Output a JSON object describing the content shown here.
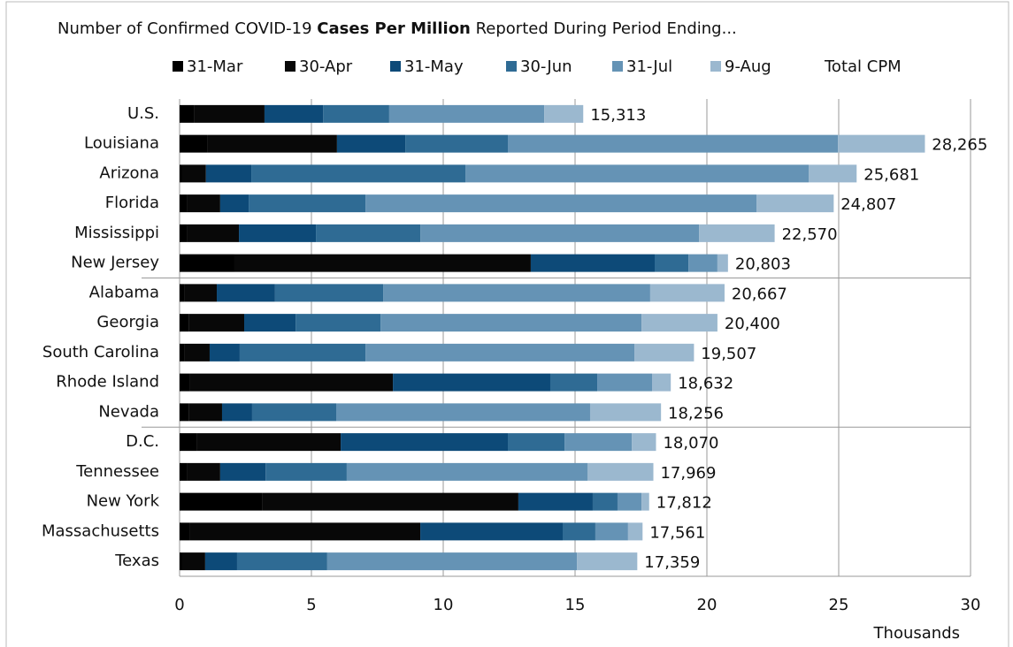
{
  "chart_data": {
    "type": "stacked_barh",
    "title": [
      "Number of Confirmed COVID-19 ",
      "Cases Per Million",
      " Reported During Period Ending..."
    ],
    "x_label": "Thousands",
    "categories": [
      "U.S.",
      "Louisiana",
      "Arizona",
      "Florida",
      "Mississippi",
      "New Jersey",
      "Alabama",
      "Georgia",
      "South Carolina",
      "Rhode Island",
      "Nevada",
      "D.C.",
      "Tennessee",
      "New York",
      "Massachusetts",
      "Texas"
    ],
    "series": [
      {
        "name": "31-Mar",
        "color": "#000000",
        "values": [
          0.54,
          1.07,
          0.1,
          0.27,
          0.27,
          2.08,
          0.17,
          0.34,
          0.17,
          0.4,
          0.34,
          0.64,
          0.27,
          3.15,
          0.4,
          0.1
        ]
      },
      {
        "name": "30-Apr",
        "color": "#080808",
        "values": [
          2.68,
          4.9,
          0.9,
          1.27,
          1.98,
          11.24,
          1.24,
          2.11,
          0.97,
          7.69,
          1.27,
          5.47,
          1.27,
          9.7,
          8.73,
          0.87
        ]
      },
      {
        "name": "31-May",
        "color": "#0d4a78",
        "values": [
          2.22,
          2.59,
          1.72,
          1.08,
          2.92,
          4.7,
          2.21,
          1.95,
          1.14,
          5.97,
          1.14,
          6.34,
          1.72,
          2.82,
          5.4,
          1.21
        ]
      },
      {
        "name": "30-Jun",
        "color": "#2f6b94",
        "values": [
          2.51,
          3.89,
          8.12,
          4.43,
          3.96,
          1.28,
          4.1,
          3.22,
          4.77,
          1.78,
          3.19,
          2.15,
          3.08,
          0.94,
          1.24,
          3.42
        ]
      },
      {
        "name": "31-Jul",
        "color": "#6593b5",
        "values": [
          5.88,
          12.52,
          13.02,
          14.83,
          10.57,
          1.1,
          10.13,
          9.9,
          10.2,
          2.08,
          9.63,
          2.55,
          9.13,
          0.91,
          1.24,
          9.47
        ]
      },
      {
        "name": "9-Aug",
        "color": "#9bb8cf",
        "values": [
          1.48,
          3.3,
          1.82,
          2.93,
          2.87,
          0.4,
          2.82,
          2.88,
          2.26,
          0.71,
          2.69,
          0.92,
          2.5,
          0.29,
          0.55,
          2.29
        ]
      }
    ],
    "totals": {
      "name": "Total CPM",
      "values": [
        15.313,
        28.265,
        25.681,
        24.807,
        22.57,
        20.803,
        20.667,
        20.4,
        19.507,
        18.632,
        18.256,
        18.07,
        17.969,
        17.812,
        17.561,
        17.359
      ],
      "value_labels": [
        "15,313",
        "28,265",
        "25,681",
        "24,807",
        "22,570",
        "20,803",
        "20,667",
        "20,400",
        "19,507",
        "18,632",
        "18,256",
        "18,070",
        "17,969",
        "17,812",
        "17,561",
        "17,359"
      ]
    },
    "xlim": [
      0,
      30
    ],
    "xticks": [
      0,
      5,
      10,
      15,
      20,
      25,
      30
    ],
    "grid": true
  }
}
